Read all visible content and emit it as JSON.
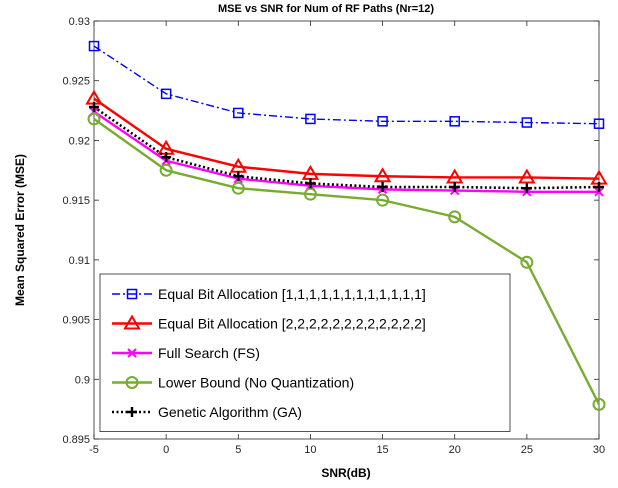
{
  "chart_data": {
    "type": "line",
    "title": "MSE vs SNR for Num of RF Paths (Nr=12)",
    "xlabel": "SNR(dB)",
    "ylabel": "Mean Squared Error (MSE)",
    "xlim": [
      -5,
      30
    ],
    "ylim": [
      0.895,
      0.93
    ],
    "xticks": [
      "-5",
      "0",
      "5",
      "10",
      "15",
      "20",
      "25",
      "30"
    ],
    "yticks": [
      "0.895",
      "0.9",
      "0.905",
      "0.91",
      "0.915",
      "0.92",
      "0.925",
      "0.93"
    ],
    "grid": false,
    "legend_position": "bottom-left",
    "x": [
      -5,
      0,
      5,
      10,
      15,
      20,
      25,
      30
    ],
    "series": [
      {
        "name": "Equal Bit Allocation [1,1,1,1,1,1,1,1,1,1,1,1]",
        "color": "#0000ff",
        "marker": "square",
        "line": "dashdot",
        "values": [
          0.9279,
          0.9239,
          0.9223,
          0.9218,
          0.9216,
          0.9216,
          0.9215,
          0.9214
        ]
      },
      {
        "name": "Equal Bit Allocation [2,2,2,2,2,2,2,2,2,2,2,2]",
        "color": "#ff0000",
        "marker": "triangle",
        "line": "solid",
        "values": [
          0.9235,
          0.9193,
          0.9178,
          0.9172,
          0.917,
          0.9169,
          0.9169,
          0.9168
        ]
      },
      {
        "name": "Full Search (FS)",
        "color": "#ff00ff",
        "marker": "x",
        "line": "solid",
        "values": [
          0.9224,
          0.9183,
          0.9168,
          0.9162,
          0.9159,
          0.9158,
          0.9157,
          0.9157
        ]
      },
      {
        "name": "Lower Bound (No Quantization)",
        "color": "#77ac30",
        "marker": "circle",
        "line": "solid",
        "values": [
          0.9218,
          0.9175,
          0.916,
          0.9155,
          0.915,
          0.9136,
          0.9098,
          0.8979
        ]
      },
      {
        "name": "Genetic Algorithm (GA)",
        "color": "#000000",
        "marker": "plus",
        "line": "dotted",
        "values": [
          0.9228,
          0.9186,
          0.917,
          0.9164,
          0.9161,
          0.9161,
          0.916,
          0.9161
        ]
      }
    ]
  }
}
